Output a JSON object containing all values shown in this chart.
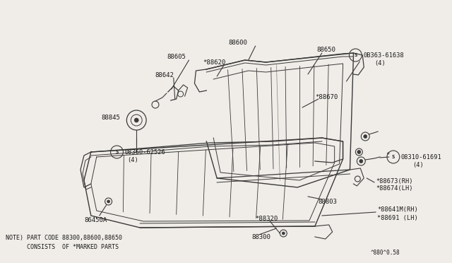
{
  "bg_color": "#f0ede8",
  "line_color": "#3a3a3a",
  "text_color": "#1a1a1a",
  "note_line1": "NOTE) PART CODE 88300,88600,88650",
  "note_line2": "      CONSISTS  OF *MARKED PARTS",
  "part_id": "^880^0.58"
}
